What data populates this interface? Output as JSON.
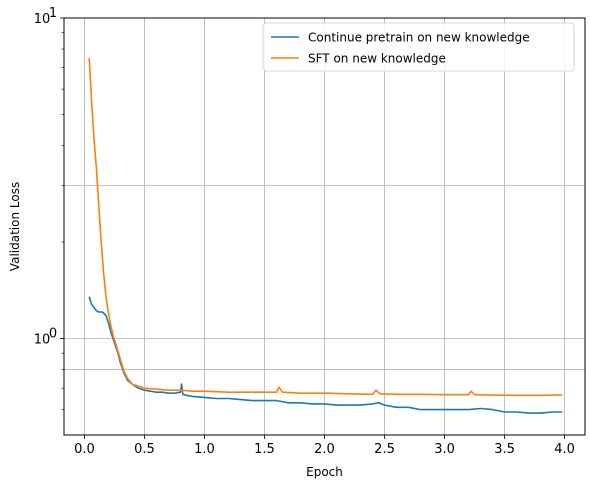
{
  "chart_data": {
    "type": "line",
    "title": "",
    "xlabel": "Epoch",
    "ylabel": "Validation Loss",
    "xlim": [
      -0.17,
      4.17
    ],
    "ylim": [
      0.5,
      10
    ],
    "yscale": "log",
    "grid": true,
    "legend_position": "top-right",
    "x_ticks": [
      0.0,
      0.5,
      1.0,
      1.5,
      2.0,
      2.5,
      3.0,
      3.5,
      4.0
    ],
    "x_tick_labels": [
      "0.0",
      "0.5",
      "1.0",
      "1.5",
      "2.0",
      "2.5",
      "3.0",
      "3.5",
      "4.0"
    ],
    "y_major_ticks": [
      1,
      10
    ],
    "y_major_tick_labels": [
      "10^0",
      "10^1"
    ],
    "y_minor_gridlines": [
      0.8,
      3
    ],
    "series": [
      {
        "name": "Continue pretrain on new knowledge",
        "color": "#1f77b4",
        "x": [
          0.04,
          0.06,
          0.08,
          0.1,
          0.12,
          0.15,
          0.18,
          0.2,
          0.22,
          0.25,
          0.28,
          0.3,
          0.33,
          0.36,
          0.4,
          0.45,
          0.5,
          0.55,
          0.6,
          0.65,
          0.7,
          0.75,
          0.8,
          0.81,
          0.82,
          0.85,
          0.9,
          1.0,
          1.1,
          1.2,
          1.3,
          1.4,
          1.5,
          1.6,
          1.7,
          1.8,
          1.9,
          2.0,
          2.1,
          2.2,
          2.3,
          2.4,
          2.45,
          2.5,
          2.6,
          2.7,
          2.8,
          2.9,
          3.0,
          3.1,
          3.2,
          3.3,
          3.4,
          3.5,
          3.6,
          3.7,
          3.8,
          3.9,
          3.98
        ],
        "y": [
          1.35,
          1.28,
          1.25,
          1.22,
          1.21,
          1.21,
          1.18,
          1.12,
          1.05,
          0.97,
          0.9,
          0.84,
          0.78,
          0.74,
          0.72,
          0.7,
          0.69,
          0.685,
          0.68,
          0.68,
          0.675,
          0.675,
          0.68,
          0.72,
          0.67,
          0.665,
          0.66,
          0.655,
          0.65,
          0.65,
          0.645,
          0.64,
          0.64,
          0.64,
          0.63,
          0.63,
          0.625,
          0.625,
          0.62,
          0.62,
          0.62,
          0.625,
          0.63,
          0.62,
          0.61,
          0.61,
          0.6,
          0.6,
          0.6,
          0.6,
          0.6,
          0.605,
          0.6,
          0.59,
          0.59,
          0.585,
          0.585,
          0.59,
          0.59
        ]
      },
      {
        "name": "SFT on new knowledge",
        "color": "#ff7f0e",
        "x": [
          0.04,
          0.06,
          0.08,
          0.1,
          0.12,
          0.14,
          0.16,
          0.18,
          0.2,
          0.22,
          0.24,
          0.27,
          0.3,
          0.33,
          0.36,
          0.4,
          0.45,
          0.5,
          0.6,
          0.7,
          0.8,
          0.9,
          1.0,
          1.2,
          1.4,
          1.6,
          1.62,
          1.65,
          1.8,
          2.0,
          2.2,
          2.4,
          2.43,
          2.46,
          2.6,
          2.8,
          3.0,
          3.2,
          3.22,
          3.25,
          3.4,
          3.6,
          3.8,
          3.98
        ],
        "y": [
          7.5,
          5.5,
          4.2,
          3.4,
          2.6,
          2.0,
          1.6,
          1.35,
          1.2,
          1.1,
          1.02,
          0.94,
          0.86,
          0.79,
          0.75,
          0.72,
          0.71,
          0.7,
          0.695,
          0.69,
          0.69,
          0.685,
          0.685,
          0.68,
          0.68,
          0.68,
          0.705,
          0.68,
          0.675,
          0.675,
          0.672,
          0.67,
          0.69,
          0.672,
          0.67,
          0.67,
          0.668,
          0.668,
          0.685,
          0.668,
          0.666,
          0.665,
          0.665,
          0.667
        ]
      }
    ]
  }
}
